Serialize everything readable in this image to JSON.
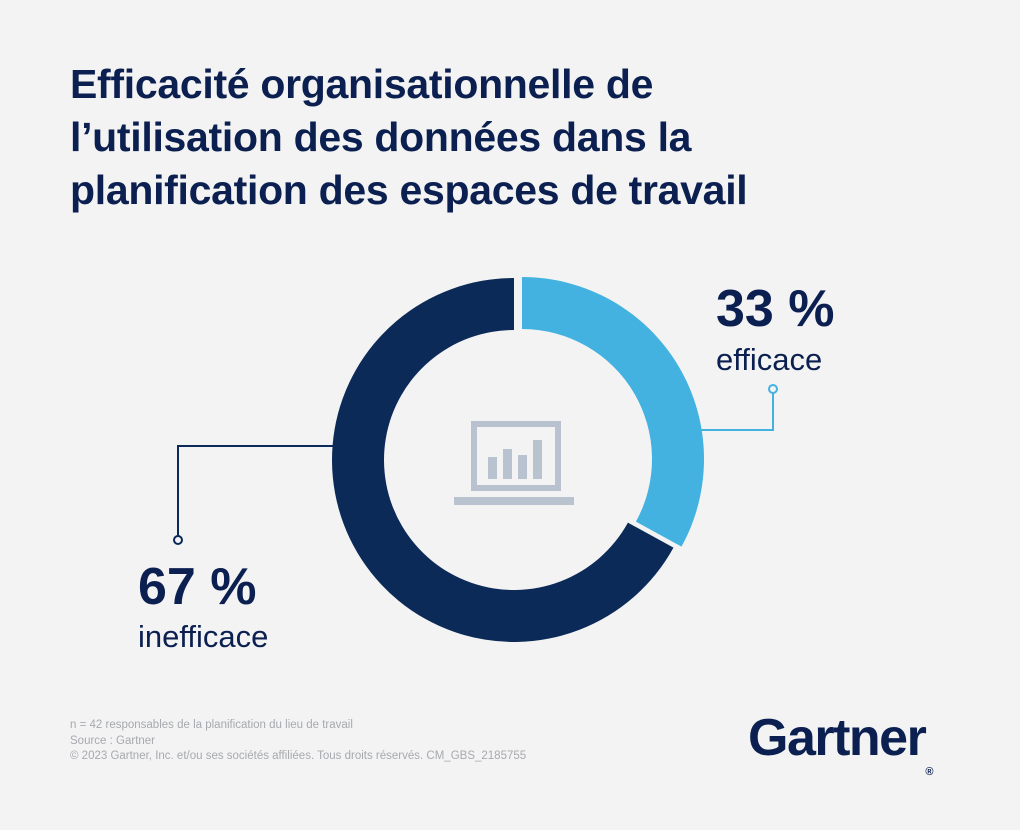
{
  "title_lines": [
    "Efficacité organisationnelle de",
    "l’utilisation des données dans la",
    "planification des espaces de travail"
  ],
  "chart_data": {
    "type": "pie",
    "donut": true,
    "slices": [
      {
        "label": "efficace",
        "value": 33,
        "value_label": "33 %",
        "color": "#43b2e0"
      },
      {
        "label": "inefficace",
        "value": 67,
        "value_label": "67 %",
        "color": "#0b2a57"
      }
    ],
    "center_icon": "laptop-chart-icon",
    "callout_color": "#43b2e0",
    "callout_color_dark": "#0b2a57"
  },
  "footer": {
    "sample": "n = 42 responsables de la planification du lieu de travail",
    "source": "Source : Gartner",
    "copyright": "© 2023 Gartner, Inc. et/ou ses sociétés affiliées. Tous droits réservés. CM_GBS_2185755"
  },
  "logo": {
    "text": "Gartner",
    "mark": "®"
  }
}
